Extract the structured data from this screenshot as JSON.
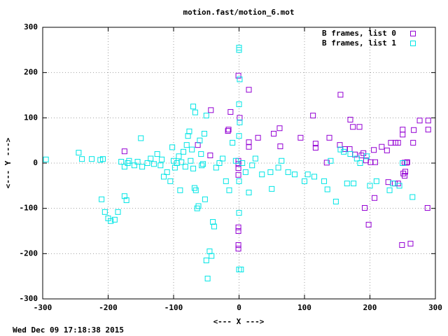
{
  "chart_data": {
    "type": "scatter",
    "title": "motion.fast/motion_6.mot",
    "x_label": "<--- X --->",
    "y_label": "<--- Y --->",
    "timestamp": "Wed Dec 09 17:18:38 2015",
    "xlim": [
      -300,
      300
    ],
    "xticks": [
      -300,
      -200,
      -100,
      0,
      100,
      200,
      300
    ],
    "ylim": [
      -300,
      300
    ],
    "yticks": [
      -300,
      -200,
      -100,
      0,
      100,
      200,
      300
    ],
    "grid": true,
    "legend": "top-right",
    "series": [
      {
        "name": "B frames, list 0",
        "color": "#9400d3",
        "x": [
          155,
          15,
          -1,
          -43,
          -13,
          113,
          170,
          174,
          184,
          276,
          289,
          289,
          250,
          250,
          267,
          232,
          239,
          243,
          266,
          288,
          192,
          198,
          249,
          262,
          207,
          254,
          251,
          253,
          253,
          257,
          201,
          208,
          177,
          169,
          162,
          154,
          138,
          117,
          117,
          94,
          63,
          53,
          62,
          29,
          15,
          15,
          -16,
          -17,
          1,
          226,
          218,
          206,
          190,
          187,
          -175,
          -63,
          -44,
          -1,
          -1,
          -1,
          -1,
          -1,
          -1,
          -1,
          -1,
          228,
          238,
          256,
          243,
          134,
          194
        ],
        "values": [
          151,
          162,
          193,
          117,
          113,
          105,
          96,
          80,
          80,
          94,
          94,
          74,
          74,
          63,
          73,
          45,
          45,
          45,
          45,
          -99,
          -99,
          -136,
          -181,
          -178,
          -77,
          -19,
          -23,
          -28,
          1,
          2,
          2,
          2,
          19,
          31,
          31,
          40,
          56,
          43,
          34,
          56,
          37,
          65,
          77,
          56,
          36,
          46,
          74,
          71,
          100,
          28,
          36,
          29,
          22,
          17,
          26,
          40,
          17,
          -26,
          -11,
          -2,
          5,
          -142,
          -150,
          -181,
          -189,
          -42,
          -45,
          1,
          -45,
          1,
          6
        ]
      },
      {
        "name": "B frames, list 1",
        "color": "#00e5e5",
        "x": [
          -295,
          -245,
          -240,
          -225,
          -212,
          -208,
          -210,
          -205,
          -200,
          -196,
          -190,
          -185,
          -175,
          -172,
          -180,
          -175,
          -170,
          -168,
          -160,
          -155,
          -150,
          -148,
          -140,
          -135,
          -130,
          -125,
          -120,
          -118,
          -115,
          -110,
          -105,
          -102,
          -100,
          -98,
          -95,
          -92,
          -90,
          -88,
          -85,
          -82,
          -80,
          -78,
          -76,
          -74,
          -72,
          -70,
          -68,
          -66,
          -64,
          -62,
          -60,
          -58,
          -57,
          -55,
          -53,
          -52,
          -50,
          -50,
          -48,
          -45,
          -42,
          -40,
          -38,
          -70,
          -67,
          -35,
          -30,
          -25,
          -20,
          -15,
          -10,
          -5,
          0,
          0,
          1,
          0,
          1,
          0,
          0,
          0,
          0,
          3,
          5,
          10,
          15,
          20,
          25,
          35,
          48,
          50,
          60,
          65,
          75,
          85,
          100,
          105,
          115,
          130,
          135,
          140,
          148,
          155,
          160,
          165,
          170,
          175,
          180,
          185,
          195,
          200,
          210,
          230,
          235,
          245,
          250,
          265
        ],
        "values": [
          8,
          23,
          9,
          9,
          7,
          9,
          -80,
          -108,
          -122,
          -128,
          -125,
          -108,
          -73,
          -82,
          3,
          -8,
          0,
          5,
          -5,
          3,
          55,
          -8,
          0,
          10,
          -2,
          20,
          -5,
          8,
          -30,
          -20,
          -40,
          35,
          5,
          -10,
          0,
          15,
          -60,
          2,
          25,
          -8,
          40,
          60,
          70,
          5,
          30,
          -12,
          -55,
          -60,
          -100,
          -95,
          50,
          20,
          -5,
          -2,
          65,
          -80,
          105,
          -215,
          -255,
          -195,
          -205,
          -130,
          -140,
          125,
          112,
          -10,
          0,
          10,
          -40,
          -60,
          45,
          5,
          255,
          250,
          185,
          130,
          90,
          60,
          -40,
          -110,
          -235,
          -235,
          0,
          -20,
          -65,
          -5,
          10,
          -25,
          -20,
          -57,
          -10,
          5,
          -20,
          -25,
          -40,
          -25,
          -30,
          -40,
          -58,
          5,
          -85,
          30,
          25,
          -45,
          20,
          -45,
          10,
          0,
          15,
          -50,
          -40,
          -60,
          -45,
          -50,
          0,
          -75
        ]
      }
    ]
  }
}
